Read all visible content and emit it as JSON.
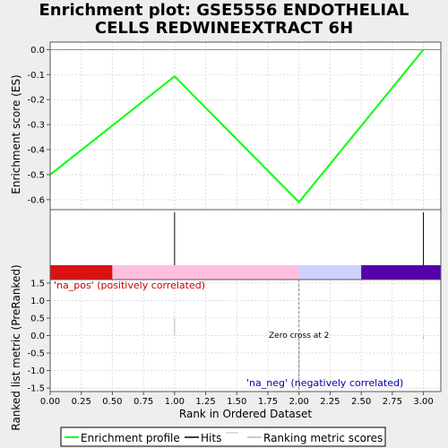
{
  "title_lines": [
    "Enrichment plot: GSE5556 ENDOTHELIAL",
    "CELLS REDWINEEXTRACT 6H"
  ],
  "chart_data": {
    "type": "line",
    "x": [
      0.0,
      1.0,
      2.0,
      3.0
    ],
    "series": [
      {
        "name": "Enrichment profile",
        "values": [
          -0.5,
          -0.107,
          -0.61,
          0.0
        ],
        "color": "#00ff00"
      }
    ],
    "hits": [
      1,
      3
    ],
    "ranking_metric_scores": [
      {
        "x": 1,
        "value": 0.5
      },
      {
        "x": 2,
        "value": -1.5
      },
      {
        "x": 3,
        "value": -0.1
      }
    ],
    "xlabel": "Rank in Ordered Dataset",
    "ylabel_top": "Enrichment score (ES)",
    "ylabel_bottom": "Ranked list metric (PreRanked)",
    "xlim": [
      0,
      3.14
    ],
    "ylim_top": [
      -0.64,
      0.03
    ],
    "ylim_bottom": [
      -1.6,
      1.6
    ],
    "x_ticks": [
      "0.00",
      "0.25",
      "0.50",
      "0.75",
      "1.00",
      "1.25",
      "1.50",
      "1.75",
      "2.00",
      "2.25",
      "2.50",
      "2.75",
      "3.00"
    ],
    "y_ticks_top": [
      "0.0",
      "-0.1",
      "-0.2",
      "-0.3",
      "-0.4",
      "-0.5",
      "-0.6"
    ],
    "y_ticks_bottom": [
      "1.5",
      "1.0",
      "0.5",
      "0.0",
      "-0.5",
      "-1.0",
      "-1.5"
    ],
    "color_bar": [
      {
        "from": 0.0,
        "to": 0.5,
        "color": "#dd1111"
      },
      {
        "from": 0.5,
        "to": 2.0,
        "color": "#ffc0e0"
      },
      {
        "from": 2.0,
        "to": 2.5,
        "color": "#d0d0ff"
      },
      {
        "from": 2.5,
        "to": 3.14,
        "color": "#5500aa"
      }
    ],
    "annotations": {
      "na_pos": "'na_pos' (positively correlated)",
      "na_neg": "'na_neg' (negatively correlated)",
      "zero_cross": "Zero cross at 2"
    },
    "zero_cross_x": 2,
    "legend": [
      "Enrichment profile",
      "Hits",
      "Ranking metric scores"
    ],
    "legend_placement": "bottom-center",
    "grid": true
  },
  "colors": {
    "profile": "#00ff00",
    "na_pos": "#cc0000",
    "na_neg": "#0000aa",
    "grid": "#dddddd",
    "metric": "#bbbbbb"
  }
}
